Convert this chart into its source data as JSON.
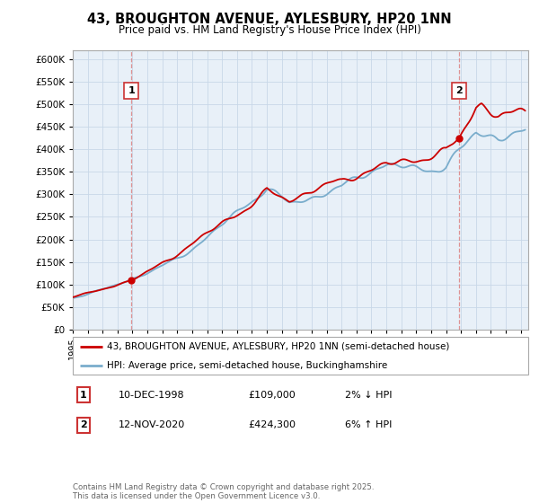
{
  "title": "43, BROUGHTON AVENUE, AYLESBURY, HP20 1NN",
  "subtitle": "Price paid vs. HM Land Registry's House Price Index (HPI)",
  "ylim": [
    0,
    620000
  ],
  "xlim_start": 1995.0,
  "xlim_end": 2025.5,
  "sale1_x": 1998.92,
  "sale1_y": 109000,
  "sale1_label": "1",
  "sale2_x": 2020.87,
  "sale2_y": 424300,
  "sale2_label": "2",
  "line_color_red": "#cc0000",
  "line_color_blue": "#7aadcc",
  "dashed_color": "#dd8888",
  "legend_label_red": "43, BROUGHTON AVENUE, AYLESBURY, HP20 1NN (semi-detached house)",
  "legend_label_blue": "HPI: Average price, semi-detached house, Buckinghamshire",
  "table_row1": [
    "1",
    "10-DEC-1998",
    "£109,000",
    "2% ↓ HPI"
  ],
  "table_row2": [
    "2",
    "12-NOV-2020",
    "£424,300",
    "6% ↑ HPI"
  ],
  "footer": "Contains HM Land Registry data © Crown copyright and database right 2025.\nThis data is licensed under the Open Government Licence v3.0.",
  "bg_color": "#e8f0f8",
  "grid_color": "#c8d8e8",
  "plot_bg": "#e8f0f8"
}
